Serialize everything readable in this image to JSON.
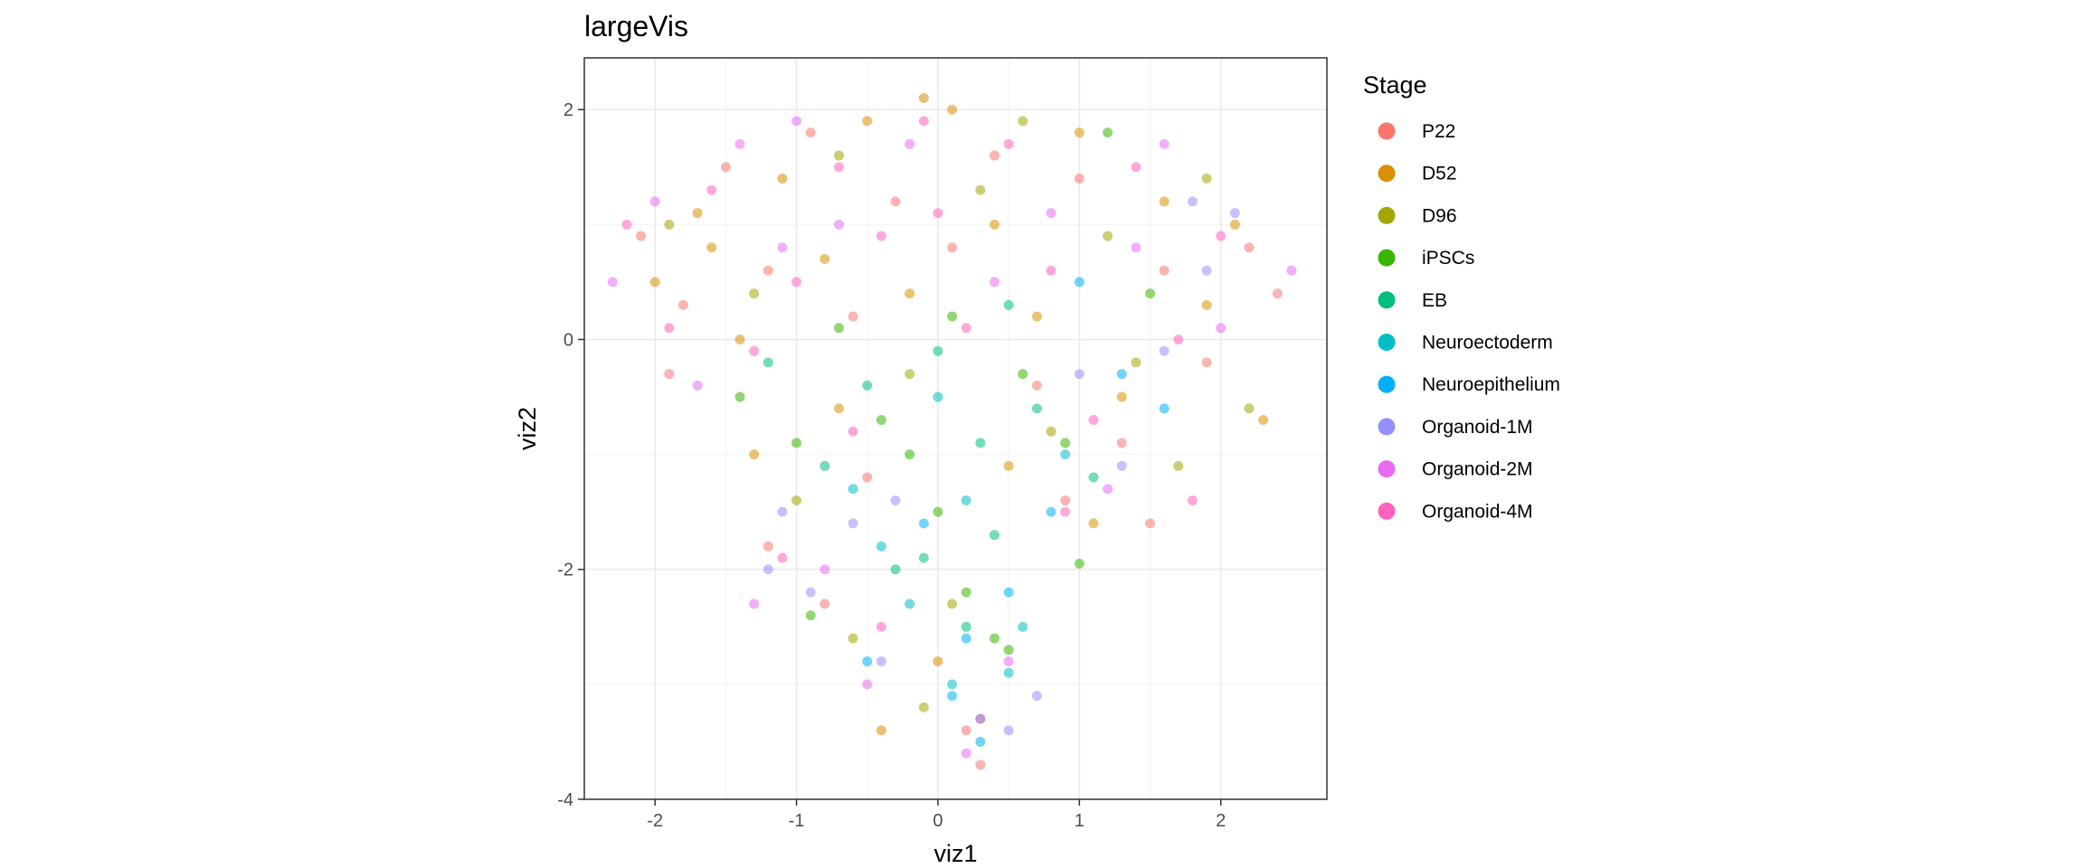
{
  "chart_data": {
    "type": "scatter",
    "title": "largeVis",
    "xlabel": "viz1",
    "ylabel": "viz2",
    "xlim": [
      -2.5,
      2.75
    ],
    "ylim": [
      -4.0,
      2.45
    ],
    "x_ticks": [
      -2,
      -1,
      0,
      1,
      2
    ],
    "x_tick_labels": [
      "-2",
      "-1",
      "0",
      "1",
      "2"
    ],
    "y_ticks": [
      2,
      0,
      -2,
      -4
    ],
    "y_tick_labels": [
      "2",
      "0",
      "-2",
      "-4"
    ],
    "grid": true,
    "legend": {
      "title": "Stage",
      "position": "right",
      "entries": [
        {
          "label": "P22",
          "color": "#F8766D"
        },
        {
          "label": "D52",
          "color": "#D89000"
        },
        {
          "label": "D96",
          "color": "#A3A500"
        },
        {
          "label": "iPSCs",
          "color": "#39B600"
        },
        {
          "label": "EB",
          "color": "#00BF7D"
        },
        {
          "label": "Neuroectoderm",
          "color": "#00BFC4"
        },
        {
          "label": "Neuroepithelium",
          "color": "#00B0F6"
        },
        {
          "label": "Organoid-1M",
          "color": "#9590FF"
        },
        {
          "label": "Organoid-2M",
          "color": "#E76BF3"
        },
        {
          "label": "Organoid-4M",
          "color": "#FF62BC"
        }
      ]
    },
    "series": [
      {
        "name": "P22",
        "color": "#F8766D",
        "points": [
          [
            -2.1,
            0.9
          ],
          [
            -1.8,
            0.3
          ],
          [
            -1.5,
            1.5
          ],
          [
            -1.2,
            0.6
          ],
          [
            -0.9,
            1.8
          ],
          [
            -0.6,
            0.2
          ],
          [
            -0.3,
            1.2
          ],
          [
            0.1,
            0.8
          ],
          [
            0.4,
            1.6
          ],
          [
            0.7,
            -0.4
          ],
          [
            1.0,
            1.4
          ],
          [
            1.3,
            -0.9
          ],
          [
            1.6,
            0.6
          ],
          [
            1.9,
            -0.2
          ],
          [
            2.2,
            0.8
          ],
          [
            -1.2,
            -1.8
          ],
          [
            -0.8,
            -2.3
          ],
          [
            0.2,
            -3.4
          ],
          [
            0.3,
            -3.7
          ],
          [
            -0.5,
            -1.2
          ],
          [
            0.9,
            -1.4
          ],
          [
            1.5,
            -1.6
          ],
          [
            -1.9,
            -0.3
          ],
          [
            2.4,
            0.4
          ]
        ]
      },
      {
        "name": "D52",
        "color": "#D89000",
        "points": [
          [
            -2.0,
            0.5
          ],
          [
            -1.7,
            1.1
          ],
          [
            -1.4,
            0.0
          ],
          [
            -1.1,
            1.4
          ],
          [
            -0.8,
            0.7
          ],
          [
            -0.5,
            1.9
          ],
          [
            -0.2,
            0.4
          ],
          [
            0.1,
            2.0
          ],
          [
            0.4,
            1.0
          ],
          [
            0.7,
            0.2
          ],
          [
            1.0,
            1.8
          ],
          [
            1.3,
            -0.5
          ],
          [
            1.6,
            1.2
          ],
          [
            1.9,
            0.3
          ],
          [
            2.3,
            -0.7
          ],
          [
            -1.3,
            -1.0
          ],
          [
            -0.7,
            -0.6
          ],
          [
            0.5,
            -1.1
          ],
          [
            1.1,
            -1.6
          ],
          [
            -0.4,
            -3.4
          ],
          [
            0.0,
            -2.8
          ],
          [
            -1.6,
            0.8
          ],
          [
            -0.1,
            2.1
          ],
          [
            2.1,
            1.0
          ]
        ]
      },
      {
        "name": "D96",
        "color": "#A3A500",
        "points": [
          [
            -1.9,
            1.0
          ],
          [
            -1.3,
            0.4
          ],
          [
            -0.7,
            1.6
          ],
          [
            -0.2,
            -0.3
          ],
          [
            0.3,
            1.3
          ],
          [
            0.8,
            -0.8
          ],
          [
            1.2,
            0.9
          ],
          [
            1.7,
            -1.1
          ],
          [
            2.2,
            -0.6
          ],
          [
            -0.6,
            -2.6
          ],
          [
            0.1,
            -2.3
          ],
          [
            1.4,
            -0.2
          ],
          [
            -1.0,
            -1.4
          ],
          [
            0.6,
            1.9
          ],
          [
            -0.1,
            -3.2
          ],
          [
            1.9,
            1.4
          ]
        ]
      },
      {
        "name": "iPSCs",
        "color": "#39B600",
        "points": [
          [
            -1.4,
            -0.5
          ],
          [
            -1.0,
            -0.9
          ],
          [
            -0.7,
            0.1
          ],
          [
            -0.4,
            -0.7
          ],
          [
            0.0,
            -1.5
          ],
          [
            0.2,
            -2.2
          ],
          [
            0.4,
            -2.6
          ],
          [
            0.6,
            -0.3
          ],
          [
            0.9,
            -0.9
          ],
          [
            1.2,
            1.8
          ],
          [
            1.0,
            -1.95
          ],
          [
            -0.9,
            -2.4
          ],
          [
            0.5,
            -2.7
          ],
          [
            -0.2,
            -1.0
          ],
          [
            1.5,
            0.4
          ],
          [
            0.1,
            0.2
          ]
        ]
      },
      {
        "name": "EB",
        "color": "#00BF7D",
        "points": [
          [
            -1.2,
            -0.2
          ],
          [
            -0.8,
            -1.1
          ],
          [
            -0.5,
            -0.4
          ],
          [
            -0.1,
            -1.9
          ],
          [
            0.2,
            -2.5
          ],
          [
            0.4,
            -1.7
          ],
          [
            0.7,
            -0.6
          ],
          [
            1.1,
            -1.2
          ],
          [
            0.3,
            -0.9
          ],
          [
            -0.3,
            -2.0
          ],
          [
            0.5,
            0.3
          ],
          [
            0.0,
            -0.1
          ]
        ]
      },
      {
        "name": "Neuroectoderm",
        "color": "#00BFC4",
        "points": [
          [
            -0.6,
            -1.3
          ],
          [
            -0.2,
            -2.3
          ],
          [
            0.1,
            -3.0
          ],
          [
            0.3,
            -3.3
          ],
          [
            0.6,
            -2.5
          ],
          [
            0.9,
            -1.0
          ],
          [
            0.0,
            -0.5
          ],
          [
            -0.4,
            -1.8
          ],
          [
            0.5,
            -2.9
          ],
          [
            0.2,
            -1.4
          ]
        ]
      },
      {
        "name": "Neuroepithelium",
        "color": "#00B0F6",
        "points": [
          [
            -0.5,
            -2.8
          ],
          [
            0.1,
            -3.1
          ],
          [
            0.3,
            -3.5
          ],
          [
            0.5,
            -2.2
          ],
          [
            1.0,
            0.5
          ],
          [
            1.3,
            -0.3
          ],
          [
            0.8,
            -1.5
          ],
          [
            -0.1,
            -1.6
          ],
          [
            1.6,
            -0.6
          ],
          [
            0.2,
            -2.6
          ]
        ]
      },
      {
        "name": "Organoid-1M",
        "color": "#9590FF",
        "points": [
          [
            -1.2,
            -2.0
          ],
          [
            -0.9,
            -2.2
          ],
          [
            -0.6,
            -1.6
          ],
          [
            -0.4,
            -2.8
          ],
          [
            0.5,
            -3.4
          ],
          [
            1.3,
            -1.1
          ],
          [
            1.6,
            -0.1
          ],
          [
            1.9,
            0.6
          ],
          [
            2.1,
            1.1
          ],
          [
            1.0,
            -0.3
          ],
          [
            -1.1,
            -1.5
          ],
          [
            0.7,
            -3.1
          ],
          [
            -0.3,
            -1.4
          ],
          [
            1.8,
            1.2
          ]
        ]
      },
      {
        "name": "Organoid-2M",
        "color": "#E76BF3",
        "points": [
          [
            -2.3,
            0.5
          ],
          [
            -2.0,
            1.2
          ],
          [
            -1.7,
            -0.4
          ],
          [
            -1.4,
            1.7
          ],
          [
            -1.1,
            0.8
          ],
          [
            -0.8,
            -2.0
          ],
          [
            -0.5,
            -3.0
          ],
          [
            -0.2,
            1.7
          ],
          [
            0.2,
            -3.6
          ],
          [
            0.4,
            0.5
          ],
          [
            0.8,
            1.1
          ],
          [
            1.2,
            -1.3
          ],
          [
            1.6,
            1.7
          ],
          [
            2.0,
            0.1
          ],
          [
            2.5,
            0.6
          ],
          [
            -1.3,
            -2.3
          ],
          [
            -1.0,
            1.9
          ],
          [
            0.5,
            -2.8
          ],
          [
            -0.7,
            1.0
          ],
          [
            1.4,
            0.8
          ]
        ]
      },
      {
        "name": "Organoid-4M",
        "color": "#FF62BC",
        "points": [
          [
            -2.2,
            1.0
          ],
          [
            -1.9,
            0.1
          ],
          [
            -1.6,
            1.3
          ],
          [
            -1.3,
            -0.1
          ],
          [
            -1.0,
            0.5
          ],
          [
            -0.7,
            1.5
          ],
          [
            -0.4,
            0.9
          ],
          [
            -0.1,
            1.9
          ],
          [
            0.2,
            0.1
          ],
          [
            0.5,
            1.7
          ],
          [
            0.8,
            0.6
          ],
          [
            1.1,
            -0.7
          ],
          [
            1.4,
            1.5
          ],
          [
            1.7,
            0.0
          ],
          [
            2.0,
            0.9
          ],
          [
            -1.1,
            -1.9
          ],
          [
            -0.4,
            -2.5
          ],
          [
            0.3,
            -3.3
          ],
          [
            0.9,
            -1.5
          ],
          [
            1.8,
            -1.4
          ],
          [
            -0.6,
            -0.8
          ],
          [
            0.0,
            1.1
          ]
        ]
      }
    ]
  }
}
